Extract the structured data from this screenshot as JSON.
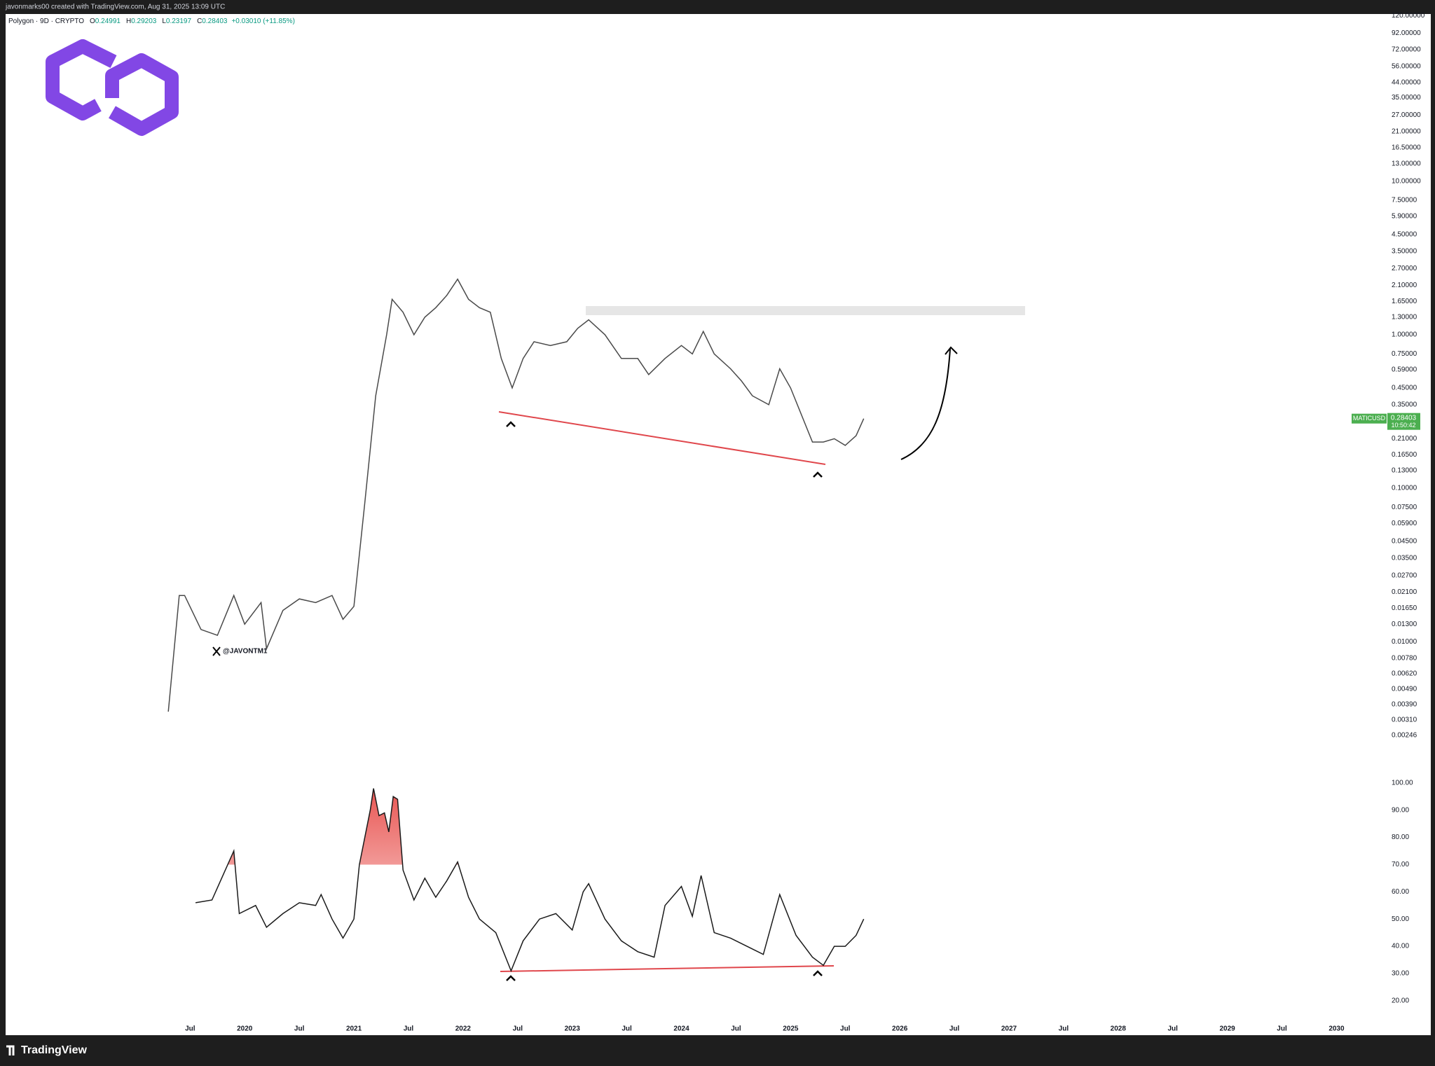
{
  "header": {
    "text": "javonmarks00 created with TradingView.com, Aug 31, 2025 13:09 UTC"
  },
  "legend": {
    "symbol": "Polygon · 9D · CRYPTO",
    "items": [
      {
        "label": "O",
        "value": 0.24991
      },
      {
        "label": "H",
        "value": 0.29203
      },
      {
        "label": "L",
        "value": 0.23197
      },
      {
        "label": "C",
        "value": 0.28403
      }
    ],
    "change": "+0.03010 (+11.85%)"
  },
  "watermark": "@JAVONTM1",
  "price_label": {
    "symbol": "MATICUSD",
    "value": 0.28403,
    "countdown": "10:50:42"
  },
  "footer": {
    "brand": "TradingView"
  },
  "chart_data": [
    {
      "type": "line",
      "log_scale": true,
      "x": [
        2019.3,
        2019.4,
        2019.45,
        2019.6,
        2019.75,
        2019.9,
        2020.0,
        2020.15,
        2020.2,
        2020.35,
        2020.5,
        2020.65,
        2020.8,
        2020.9,
        2021.0,
        2021.1,
        2021.2,
        2021.3,
        2021.35,
        2021.45,
        2021.55,
        2021.65,
        2021.75,
        2021.85,
        2021.95,
        2022.05,
        2022.15,
        2022.25,
        2022.35,
        2022.45,
        2022.55,
        2022.65,
        2022.8,
        2022.95,
        2023.05,
        2023.15,
        2023.3,
        2023.45,
        2023.6,
        2023.7,
        2023.85,
        2024.0,
        2024.1,
        2024.2,
        2024.3,
        2024.45,
        2024.55,
        2024.65,
        2024.8,
        2024.9,
        2025.0,
        2025.1,
        2025.2,
        2025.3,
        2025.4,
        2025.5,
        2025.6,
        2025.67
      ],
      "series": [
        {
          "name": "MATICUSD",
          "color": "#4a4a4a",
          "values": [
            0.0035,
            0.02,
            0.02,
            0.012,
            0.011,
            0.02,
            0.013,
            0.018,
            0.009,
            0.016,
            0.019,
            0.018,
            0.02,
            0.014,
            0.017,
            0.08,
            0.4,
            1.0,
            1.7,
            1.4,
            1.0,
            1.3,
            1.5,
            1.8,
            2.3,
            1.7,
            1.5,
            1.4,
            0.7,
            0.45,
            0.7,
            0.9,
            0.85,
            0.9,
            1.1,
            1.25,
            1.0,
            0.7,
            0.7,
            0.55,
            0.7,
            0.85,
            0.75,
            1.05,
            0.75,
            0.6,
            0.5,
            0.4,
            0.35,
            0.6,
            0.45,
            0.3,
            0.2,
            0.2,
            0.21,
            0.19,
            0.22,
            0.284
          ]
        }
      ],
      "xlim": [
        2017.81,
        2030.44
      ],
      "xticks": [
        {
          "value": 2019.5,
          "label": "Jul"
        },
        2020,
        {
          "value": 2020.5,
          "label": "Jul"
        },
        2021,
        {
          "value": 2021.5,
          "label": "Jul"
        },
        2022,
        {
          "value": 2022.5,
          "label": "Jul"
        },
        2023,
        {
          "value": 2023.5,
          "label": "Jul"
        },
        2024,
        {
          "value": 2024.5,
          "label": "Jul"
        },
        2025,
        {
          "value": 2025.5,
          "label": "Jul"
        },
        2026,
        {
          "value": 2026.5,
          "label": "Jul"
        },
        2027,
        {
          "value": 2027.5,
          "label": "Jul"
        },
        2028,
        {
          "value": 2028.5,
          "label": "Jul"
        },
        2029,
        {
          "value": 2029.5,
          "label": "Jul"
        },
        2030
      ],
      "ylim": [
        0.00145,
        122.8
      ],
      "yticks": [
        {
          "value": 120,
          "label": "120.00000"
        },
        {
          "value": 92,
          "label": "92.00000"
        },
        {
          "value": 72,
          "label": "72.00000"
        },
        {
          "value": 56,
          "label": "56.00000"
        },
        {
          "value": 44,
          "label": "44.00000"
        },
        {
          "value": 35,
          "label": "35.00000"
        },
        {
          "value": 27,
          "label": "27.00000"
        },
        {
          "value": 21,
          "label": "21.00000"
        },
        {
          "value": 16.5,
          "label": "16.50000"
        },
        {
          "value": 13,
          "label": "13.00000"
        },
        {
          "value": 10,
          "label": "10.00000"
        },
        {
          "value": 7.5,
          "label": "7.50000"
        },
        {
          "value": 5.9,
          "label": "5.90000"
        },
        {
          "value": 4.5,
          "label": "4.50000"
        },
        {
          "value": 3.5,
          "label": "3.50000"
        },
        {
          "value": 2.7,
          "label": "2.70000"
        },
        {
          "value": 2.1,
          "label": "2.10000"
        },
        {
          "value": 1.65,
          "label": "1.65000"
        },
        {
          "value": 1.3,
          "label": "1.30000"
        },
        {
          "value": 1,
          "label": "1.00000"
        },
        {
          "value": 0.75,
          "label": "0.75000"
        },
        {
          "value": 0.59,
          "label": "0.59000"
        },
        {
          "value": 0.45,
          "label": "0.45000"
        },
        {
          "value": 0.35,
          "label": "0.35000"
        },
        {
          "value": 0.21,
          "label": "0.21000"
        },
        {
          "value": 0.165,
          "label": "0.16500"
        },
        {
          "value": 0.13,
          "label": "0.13000"
        },
        {
          "value": 0.1,
          "label": "0.10000"
        },
        {
          "value": 0.075,
          "label": "0.07500"
        },
        {
          "value": 0.059,
          "label": "0.05900"
        },
        {
          "value": 0.045,
          "label": "0.04500"
        },
        {
          "value": 0.035,
          "label": "0.03500"
        },
        {
          "value": 0.027,
          "label": "0.02700"
        },
        {
          "value": 0.021,
          "label": "0.02100"
        },
        {
          "value": 0.0165,
          "label": "0.01650"
        },
        {
          "value": 0.013,
          "label": "0.01300"
        },
        {
          "value": 0.01,
          "label": "0.01000"
        },
        {
          "value": 0.0078,
          "label": "0.00780"
        },
        {
          "value": 0.0062,
          "label": "0.00620"
        },
        {
          "value": 0.0049,
          "label": "0.00490"
        },
        {
          "value": 0.0039,
          "label": "0.00390"
        },
        {
          "value": 0.0031,
          "label": "0.00310"
        },
        {
          "value": 0.00246,
          "label": "0.00246"
        }
      ]
    },
    {
      "type": "line",
      "x": [
        2019.55,
        2019.7,
        2019.9,
        2019.95,
        2020.1,
        2020.2,
        2020.35,
        2020.5,
        2020.65,
        2020.7,
        2020.8,
        2020.9,
        2021.0,
        2021.05,
        2021.15,
        2021.18,
        2021.23,
        2021.28,
        2021.32,
        2021.36,
        2021.4,
        2021.45,
        2021.55,
        2021.65,
        2021.75,
        2021.85,
        2021.95,
        2022.05,
        2022.15,
        2022.3,
        2022.44,
        2022.55,
        2022.7,
        2022.85,
        2023.0,
        2023.1,
        2023.15,
        2023.3,
        2023.45,
        2023.6,
        2023.75,
        2023.85,
        2024.0,
        2024.1,
        2024.18,
        2024.3,
        2024.45,
        2024.6,
        2024.75,
        2024.9,
        2025.05,
        2025.2,
        2025.3,
        2025.4,
        2025.5,
        2025.6,
        2025.67
      ],
      "series": [
        {
          "name": "RSI",
          "color": "#1a1a1a",
          "values": [
            56,
            57,
            75,
            52,
            55,
            47,
            52,
            56,
            55,
            59,
            50,
            43,
            50,
            70,
            90,
            98,
            88,
            89,
            82,
            95,
            94,
            68,
            57,
            65,
            58,
            64,
            71,
            58,
            50,
            45,
            31,
            42,
            50,
            52,
            46,
            60,
            63,
            50,
            42,
            38,
            36,
            55,
            62,
            51,
            66,
            45,
            43,
            40,
            37,
            59,
            44,
            36,
            33,
            40,
            40,
            44,
            50
          ]
        }
      ],
      "overbought": 70,
      "xlim": [
        2017.81,
        2030.44
      ],
      "ylim": [
        9.4,
        104.6
      ],
      "yticks": [
        {
          "value": 100,
          "label": "100.00"
        },
        {
          "value": 90,
          "label": "90.00"
        },
        {
          "value": 80,
          "label": "80.00"
        },
        {
          "value": 70,
          "label": "70.00"
        },
        {
          "value": 60,
          "label": "60.00"
        },
        {
          "value": 50,
          "label": "50.00"
        },
        {
          "value": 40,
          "label": "40.00"
        },
        {
          "value": 30,
          "label": "30.00"
        },
        {
          "value": 20,
          "label": "20.00"
        }
      ]
    }
  ]
}
